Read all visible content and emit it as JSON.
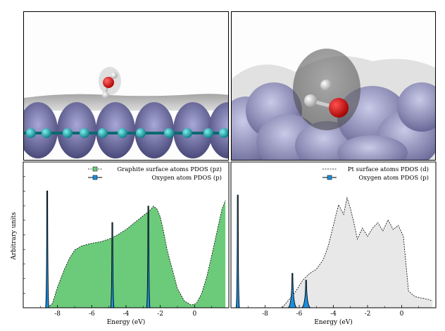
{
  "colors": {
    "graphite_fill": "#6ccb7a",
    "pt_fill": "#e8e8e8",
    "oxygen_fill": "#1a8fe0",
    "metal_surface": "#7f7fb0"
  },
  "chart_data": [
    {
      "type": "area",
      "panel": "left",
      "xlabel": "Energy (eV)",
      "ylabel": "Arbitrary units",
      "xlim": [
        -10,
        2
      ],
      "x_ticks": [
        -8,
        -6,
        -4,
        -2,
        0
      ],
      "x_tick_labels": [
        "-8",
        "-6",
        "-4",
        "-2",
        "0"
      ],
      "legend": [
        "Graphite surface atoms PDOS (pz)",
        "Oxygen atom PDOS (p)"
      ],
      "series": [
        {
          "name": "Graphite surface atoms PDOS (pz)",
          "x": [
            -10,
            -8.6,
            -8.3,
            -8.0,
            -7.6,
            -7.3,
            -7.0,
            -6.6,
            -6.3,
            -6.0,
            -5.5,
            -5.0,
            -4.5,
            -4.0,
            -3.5,
            -3.0,
            -2.6,
            -2.4,
            -2.2,
            -2.0,
            -1.8,
            -1.6,
            -1.3,
            -1.0,
            -0.6,
            -0.2,
            0.1,
            0.4,
            0.7,
            1.0,
            1.3,
            1.6,
            1.8
          ],
          "values": [
            0,
            0,
            0.03,
            0.15,
            0.28,
            0.36,
            0.42,
            0.45,
            0.46,
            0.47,
            0.48,
            0.5,
            0.53,
            0.57,
            0.62,
            0.67,
            0.71,
            0.74,
            0.72,
            0.66,
            0.55,
            0.42,
            0.28,
            0.14,
            0.05,
            0.02,
            0.03,
            0.1,
            0.22,
            0.38,
            0.55,
            0.72,
            0.78
          ]
        },
        {
          "name": "Oxygen atom PDOS (p)",
          "x": [
            -8.6,
            -4.8,
            -2.7
          ],
          "values": [
            0.85,
            0.62,
            0.74
          ]
        }
      ]
    },
    {
      "type": "area",
      "panel": "right",
      "xlabel": "Energy (eV)",
      "xlim": [
        -10,
        2
      ],
      "x_ticks": [
        -8,
        -6,
        -4,
        -2,
        0
      ],
      "x_tick_labels": [
        "-8",
        "-6",
        "-4",
        "-2",
        "0"
      ],
      "legend": [
        "Pt surface atoms PDOS (d)",
        "Oxygen atom PDOS (p)"
      ],
      "series": [
        {
          "name": "Pt surface atoms PDOS (d)",
          "x": [
            -10,
            -7.0,
            -6.6,
            -6.2,
            -5.8,
            -5.4,
            -5.0,
            -4.6,
            -4.3,
            -4.0,
            -3.7,
            -3.4,
            -3.2,
            -3.0,
            -2.8,
            -2.6,
            -2.3,
            -2.0,
            -1.7,
            -1.4,
            -1.1,
            -0.8,
            -0.5,
            -0.2,
            0.1,
            0.4,
            0.8,
            1.2,
            1.6,
            1.8
          ],
          "values": [
            0,
            0,
            0.06,
            0.12,
            0.2,
            0.25,
            0.28,
            0.35,
            0.45,
            0.6,
            0.75,
            0.68,
            0.8,
            0.72,
            0.62,
            0.5,
            0.58,
            0.52,
            0.58,
            0.62,
            0.56,
            0.64,
            0.57,
            0.6,
            0.52,
            0.12,
            0.08,
            0.07,
            0.06,
            0.05
          ]
        },
        {
          "name": "Oxygen atom PDOS (p)",
          "x": [
            -9.6,
            -6.4,
            -5.6
          ],
          "values": [
            0.82,
            0.25,
            0.2
          ]
        }
      ]
    }
  ]
}
